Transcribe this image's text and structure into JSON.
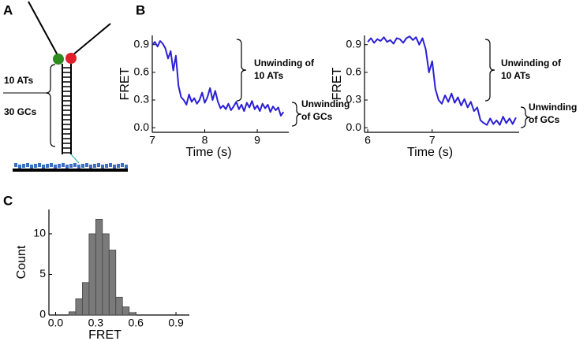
{
  "panel_labels": {
    "a": "A",
    "b": "B",
    "c": "C"
  },
  "diagram": {
    "labels": [
      "10 ATs",
      "30 GCs"
    ]
  },
  "chart_data": [
    {
      "type": "line",
      "xlabel": "Time (s)",
      "ylabel": "FRET",
      "x": [
        7.0,
        7.05,
        7.1,
        7.15,
        7.2,
        7.25,
        7.3,
        7.35,
        7.4,
        7.45,
        7.5,
        7.55,
        7.6,
        7.65,
        7.7,
        7.75,
        7.8,
        7.85,
        7.9,
        7.95,
        8.0,
        8.05,
        8.1,
        8.15,
        8.2,
        8.25,
        8.3,
        8.35,
        8.4,
        8.45,
        8.5,
        8.55,
        8.6,
        8.65,
        8.7,
        8.75,
        8.8,
        8.85,
        8.9,
        8.95,
        9.0,
        9.05,
        9.1,
        9.15,
        9.2,
        9.25,
        9.3,
        9.35,
        9.4,
        9.45,
        9.5
      ],
      "series": [
        {
          "color": "#2b1fd6",
          "values": [
            0.9,
            0.93,
            0.88,
            0.94,
            0.91,
            0.86,
            0.75,
            0.83,
            0.62,
            0.78,
            0.45,
            0.33,
            0.3,
            0.25,
            0.36,
            0.28,
            0.32,
            0.26,
            0.3,
            0.38,
            0.27,
            0.33,
            0.43,
            0.3,
            0.4,
            0.28,
            0.21,
            0.24,
            0.2,
            0.26,
            0.19,
            0.23,
            0.28,
            0.2,
            0.25,
            0.18,
            0.27,
            0.22,
            0.29,
            0.2,
            0.24,
            0.18,
            0.26,
            0.21,
            0.25,
            0.17,
            0.23,
            0.19,
            0.22,
            0.13,
            0.17
          ]
        }
      ],
      "xlim": [
        7,
        9.6
      ],
      "xticks": [
        7,
        8,
        9
      ],
      "ylim": [
        -0.05,
        1.0
      ],
      "yticks": [
        {
          "value": 0,
          "label": "0.0"
        },
        0.3,
        0.6,
        0.9
      ],
      "annotations": [
        [
          "Unwinding of",
          "10 ATs"
        ],
        [
          "Unwinding",
          "of GCs"
        ]
      ]
    },
    {
      "type": "line",
      "xlabel": "Time (s)",
      "ylabel": "FRET",
      "x": [
        6.0,
        6.05,
        6.1,
        6.15,
        6.2,
        6.25,
        6.3,
        6.35,
        6.4,
        6.45,
        6.5,
        6.55,
        6.6,
        6.65,
        6.7,
        6.75,
        6.8,
        6.85,
        6.9,
        6.95,
        7.0,
        7.05,
        7.1,
        7.15,
        7.2,
        7.25,
        7.3,
        7.35,
        7.4,
        7.45,
        7.5,
        7.55,
        7.6,
        7.65,
        7.7,
        7.75,
        7.8,
        7.85,
        7.9,
        7.95,
        8.0,
        8.05,
        8.1,
        8.15,
        8.2,
        8.25,
        8.3
      ],
      "series": [
        {
          "color": "#2b1fd6",
          "values": [
            0.93,
            0.97,
            0.92,
            0.96,
            0.94,
            0.98,
            0.93,
            0.95,
            0.91,
            0.97,
            0.96,
            0.92,
            0.97,
            0.99,
            0.95,
            0.98,
            0.9,
            0.97,
            0.85,
            0.6,
            0.72,
            0.42,
            0.3,
            0.26,
            0.35,
            0.28,
            0.37,
            0.27,
            0.33,
            0.24,
            0.31,
            0.22,
            0.28,
            0.18,
            0.22,
            0.08,
            0.05,
            0.03,
            0.1,
            0.04,
            0.08,
            0.03,
            0.12,
            0.05,
            0.1,
            0.04,
            0.11
          ]
        }
      ],
      "xlim": [
        5.95,
        8.35
      ],
      "xticks": [
        6,
        7
      ],
      "ylim": [
        -0.05,
        1.0
      ],
      "yticks": [
        {
          "value": 0,
          "label": "0.0"
        },
        0.3,
        0.6,
        0.9
      ],
      "annotations": [
        [
          "Unwinding of",
          "10 ATs"
        ],
        [
          "Unwinding",
          "of GCs"
        ]
      ]
    },
    {
      "type": "histogram",
      "xlabel": "FRET",
      "ylabel": "Count",
      "color": "#7a7a7a",
      "bins": [
        0.1,
        0.15,
        0.2,
        0.25,
        0.3,
        0.35,
        0.4,
        0.45,
        0.5,
        0.55,
        0.6
      ],
      "values": [
        0.4,
        2,
        4,
        10,
        11.8,
        10,
        8,
        2.2,
        1,
        0.3
      ],
      "xlim": [
        -0.05,
        1.0
      ],
      "xticks": [
        {
          "value": 0,
          "label": "0.0"
        },
        {
          "value": 0.3,
          "label": "0.3"
        },
        {
          "value": 0.6,
          "label": "0.6"
        },
        {
          "value": 0.9,
          "label": "0.9"
        }
      ],
      "ylim": [
        0,
        13
      ],
      "yticks": [
        0,
        5,
        10
      ]
    }
  ]
}
